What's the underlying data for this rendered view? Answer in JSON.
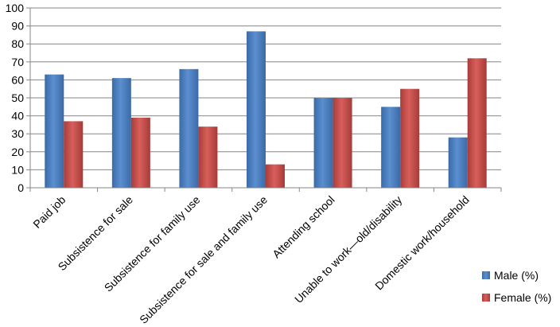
{
  "chart_data": {
    "type": "bar",
    "categories": [
      "Paid job",
      "Subsistence for sale",
      "Subsistence for family use",
      "Subsistence for sale and family use",
      "Attending school",
      "Unable to work—old/disability",
      "Domestic work/household"
    ],
    "series": [
      {
        "name": "Male (%)",
        "values": [
          63,
          61,
          66,
          87,
          50,
          45,
          28
        ],
        "color": "#4f81bd"
      },
      {
        "name": "Female (%)",
        "values": [
          37,
          39,
          34,
          13,
          50,
          55,
          72
        ],
        "color": "#c0504d"
      }
    ],
    "yticks": [
      0,
      10,
      20,
      30,
      40,
      50,
      60,
      70,
      80,
      90,
      100
    ],
    "ylim": [
      0,
      100
    ],
    "grid": true,
    "legend_position": "bottom-right"
  }
}
